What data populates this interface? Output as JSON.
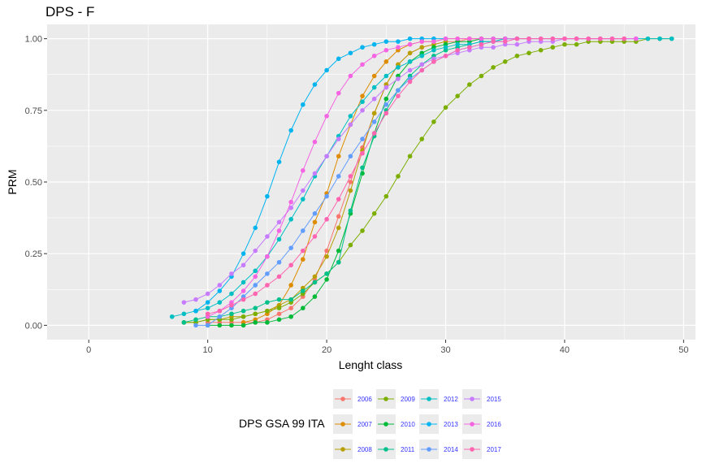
{
  "chart_data": {
    "type": "line",
    "title": "DPS - F",
    "xlabel": "Lenght class",
    "ylabel": "PRM",
    "xlim": [
      -3.5,
      51
    ],
    "ylim": [
      -0.05,
      1.05
    ],
    "x_ticks": [
      0,
      10,
      20,
      30,
      40,
      50
    ],
    "x_tick_labels": [
      "0",
      "10",
      "20",
      "30",
      "40",
      "50"
    ],
    "y_ticks": [
      0,
      0.25,
      0.5,
      0.75,
      1
    ],
    "y_tick_labels": [
      "0.00",
      "0.25",
      "0.50",
      "0.75",
      "1.00"
    ],
    "grid": true,
    "legend_title": "DPS GSA 99 ITA",
    "legend_position": "bottom",
    "series": [
      {
        "name": "2006",
        "color": "#F8766D",
        "x": [
          10,
          11,
          12,
          13,
          14,
          15,
          16,
          17,
          18,
          19,
          20,
          21,
          22,
          23,
          24,
          25,
          26,
          27,
          28,
          29,
          30,
          31,
          32,
          33
        ],
        "y": [
          0.01,
          0.01,
          0.01,
          0.01,
          0.01,
          0.02,
          0.04,
          0.06,
          0.1,
          0.16,
          0.26,
          0.38,
          0.5,
          0.62,
          0.74,
          0.84,
          0.91,
          0.95,
          0.97,
          0.98,
          0.99,
          0.99,
          1.0,
          1.0
        ]
      },
      {
        "name": "2007",
        "color": "#DE8C00",
        "x": [
          13,
          14,
          15,
          16,
          17,
          18,
          19,
          20,
          21,
          22,
          23,
          24,
          25,
          26,
          27,
          28,
          29,
          30,
          31,
          32,
          33
        ],
        "y": [
          0.01,
          0.02,
          0.04,
          0.07,
          0.14,
          0.23,
          0.36,
          0.46,
          0.59,
          0.7,
          0.8,
          0.87,
          0.92,
          0.96,
          0.98,
          0.99,
          0.99,
          1.0,
          1.0,
          1.0,
          1.0
        ]
      },
      {
        "name": "2008",
        "color": "#B79F00",
        "x": [
          8,
          9,
          10,
          11,
          12,
          13,
          14,
          15,
          16,
          17,
          18,
          19,
          20,
          21,
          22,
          23,
          24,
          25,
          26,
          27,
          28,
          29,
          30
        ],
        "y": [
          0.01,
          0.01,
          0.02,
          0.02,
          0.03,
          0.03,
          0.04,
          0.05,
          0.07,
          0.09,
          0.13,
          0.17,
          0.24,
          0.34,
          0.47,
          0.61,
          0.74,
          0.84,
          0.91,
          0.95,
          0.97,
          0.98,
          0.99
        ]
      },
      {
        "name": "2009",
        "color": "#7CAE00",
        "x": [
          8,
          9,
          10,
          11,
          12,
          13,
          14,
          15,
          16,
          17,
          18,
          19,
          20,
          21,
          22,
          23,
          24,
          25,
          26,
          27,
          28,
          29,
          30,
          31,
          32,
          33,
          34,
          35,
          36,
          37,
          38,
          39,
          40,
          41,
          42,
          43,
          44,
          45,
          46,
          47,
          48,
          49
        ],
        "y": [
          0.01,
          0.01,
          0.02,
          0.02,
          0.02,
          0.03,
          0.04,
          0.05,
          0.06,
          0.08,
          0.11,
          0.15,
          0.18,
          0.22,
          0.28,
          0.33,
          0.39,
          0.45,
          0.52,
          0.59,
          0.65,
          0.71,
          0.76,
          0.8,
          0.84,
          0.87,
          0.9,
          0.92,
          0.94,
          0.95,
          0.96,
          0.97,
          0.98,
          0.98,
          0.99,
          0.99,
          0.99,
          0.99,
          0.99,
          1.0,
          1.0,
          1.0
        ]
      },
      {
        "name": "2010",
        "color": "#00BA38",
        "x": [
          10,
          11,
          12,
          13,
          14,
          15,
          16,
          17,
          18,
          19,
          20,
          21,
          22,
          23,
          24,
          25,
          26,
          27,
          28,
          29,
          30,
          31,
          32,
          33,
          34,
          35
        ],
        "y": [
          0.0,
          0.0,
          0.0,
          0.0,
          0.01,
          0.01,
          0.02,
          0.03,
          0.06,
          0.1,
          0.16,
          0.26,
          0.39,
          0.53,
          0.67,
          0.79,
          0.87,
          0.92,
          0.95,
          0.97,
          0.98,
          0.99,
          0.99,
          1.0,
          1.0,
          1.0
        ]
      },
      {
        "name": "2011",
        "color": "#00C08B",
        "x": [
          8,
          9,
          10,
          11,
          12,
          13,
          14,
          15,
          16,
          17,
          18,
          19,
          20,
          21,
          22,
          23,
          24,
          25,
          26,
          27,
          28,
          29,
          30,
          31,
          32,
          33,
          34,
          35,
          36
        ],
        "y": [
          0.01,
          0.02,
          0.03,
          0.03,
          0.04,
          0.05,
          0.06,
          0.08,
          0.09,
          0.09,
          0.12,
          0.15,
          0.18,
          0.22,
          0.4,
          0.55,
          0.66,
          0.75,
          0.82,
          0.87,
          0.91,
          0.94,
          0.96,
          0.97,
          0.98,
          0.99,
          0.99,
          1.0,
          1.0
        ]
      },
      {
        "name": "2012",
        "color": "#00BFC4",
        "x": [
          7,
          8,
          9,
          10,
          11,
          12,
          13,
          14,
          15,
          16,
          17,
          18,
          19,
          20,
          21,
          22,
          23,
          24,
          25,
          26,
          27,
          28,
          29,
          30,
          31,
          32,
          33,
          34,
          35,
          36,
          37,
          38,
          39,
          40,
          41,
          42,
          43,
          44,
          45,
          46,
          47,
          48,
          49
        ],
        "y": [
          0.03,
          0.04,
          0.05,
          0.06,
          0.08,
          0.11,
          0.15,
          0.19,
          0.24,
          0.3,
          0.37,
          0.44,
          0.52,
          0.59,
          0.66,
          0.73,
          0.78,
          0.83,
          0.87,
          0.9,
          0.92,
          0.94,
          0.96,
          0.97,
          0.98,
          0.98,
          0.99,
          0.99,
          1.0,
          1.0,
          1.0,
          1.0,
          1.0,
          1.0,
          1.0,
          1.0,
          1.0,
          1.0,
          1.0,
          1.0,
          1.0,
          1.0,
          1.0
        ]
      },
      {
        "name": "2013",
        "color": "#00B4F0",
        "x": [
          9,
          10,
          11,
          12,
          13,
          14,
          15,
          16,
          17,
          18,
          19,
          20,
          21,
          22,
          23,
          24,
          25,
          26,
          27,
          28,
          29,
          30
        ],
        "y": [
          0.05,
          0.08,
          0.12,
          0.17,
          0.25,
          0.34,
          0.45,
          0.57,
          0.68,
          0.77,
          0.84,
          0.89,
          0.93,
          0.95,
          0.97,
          0.98,
          0.99,
          0.99,
          1.0,
          1.0,
          1.0,
          1.0
        ]
      },
      {
        "name": "2014",
        "color": "#619CFF",
        "x": [
          9,
          10,
          11,
          12,
          13,
          14,
          15,
          16,
          17,
          18,
          19,
          20,
          21,
          22,
          23,
          24,
          25,
          26,
          27,
          28,
          29,
          30,
          31,
          32,
          33,
          34,
          35
        ],
        "y": [
          0.0,
          0.0,
          0.03,
          0.06,
          0.1,
          0.14,
          0.18,
          0.22,
          0.27,
          0.33,
          0.39,
          0.45,
          0.52,
          0.59,
          0.65,
          0.71,
          0.77,
          0.82,
          0.86,
          0.89,
          0.92,
          0.94,
          0.96,
          0.97,
          0.98,
          0.99,
          0.99
        ]
      },
      {
        "name": "2015",
        "color": "#C77CFF",
        "x": [
          8,
          9,
          10,
          11,
          12,
          13,
          14,
          15,
          16,
          17,
          18,
          19,
          20,
          21,
          22,
          23,
          24,
          25,
          26,
          27,
          28,
          29,
          30,
          31,
          32,
          33,
          34,
          35,
          36,
          37,
          38,
          39,
          40,
          41,
          42,
          43,
          44,
          45,
          46
        ],
        "y": [
          0.08,
          0.09,
          0.11,
          0.14,
          0.18,
          0.21,
          0.26,
          0.31,
          0.36,
          0.41,
          0.47,
          0.53,
          0.59,
          0.65,
          0.7,
          0.75,
          0.79,
          0.83,
          0.86,
          0.89,
          0.91,
          0.93,
          0.94,
          0.95,
          0.96,
          0.97,
          0.97,
          0.98,
          0.98,
          0.99,
          0.99,
          0.99,
          1.0,
          1.0,
          1.0,
          1.0,
          1.0,
          1.0,
          1.0
        ]
      },
      {
        "name": "2016",
        "color": "#F564E3",
        "x": [
          10,
          11,
          12,
          13,
          14,
          15,
          16,
          17,
          18,
          19,
          20,
          21,
          22,
          23,
          24,
          25,
          26,
          27,
          28,
          29,
          30,
          31,
          32,
          33,
          34,
          35,
          36,
          37,
          38,
          39,
          40,
          41,
          42,
          43,
          44,
          45,
          46
        ],
        "y": [
          0.03,
          0.05,
          0.08,
          0.12,
          0.17,
          0.24,
          0.33,
          0.43,
          0.54,
          0.64,
          0.73,
          0.81,
          0.87,
          0.91,
          0.94,
          0.96,
          0.97,
          0.98,
          0.99,
          0.99,
          1.0,
          1.0,
          1.0,
          1.0,
          1.0,
          1.0,
          1.0,
          1.0,
          1.0,
          1.0,
          1.0,
          1.0,
          1.0,
          1.0,
          1.0,
          1.0,
          1.0
        ]
      },
      {
        "name": "2017",
        "color": "#FF64B0",
        "x": [
          10,
          11,
          12,
          13,
          14,
          15,
          16,
          17,
          18,
          19,
          20,
          21,
          22,
          23,
          24,
          25,
          26,
          27,
          28,
          29,
          30,
          31,
          32,
          33,
          34,
          35,
          36,
          37,
          38,
          39,
          40,
          41,
          42,
          43,
          44,
          45
        ],
        "y": [
          0.04,
          0.05,
          0.07,
          0.09,
          0.11,
          0.14,
          0.17,
          0.21,
          0.26,
          0.31,
          0.37,
          0.44,
          0.52,
          0.6,
          0.67,
          0.74,
          0.8,
          0.85,
          0.89,
          0.92,
          0.94,
          0.96,
          0.97,
          0.98,
          0.99,
          0.99,
          1.0,
          1.0,
          1.0,
          1.0,
          1.0,
          1.0,
          1.0,
          1.0,
          1.0,
          1.0
        ]
      }
    ]
  }
}
